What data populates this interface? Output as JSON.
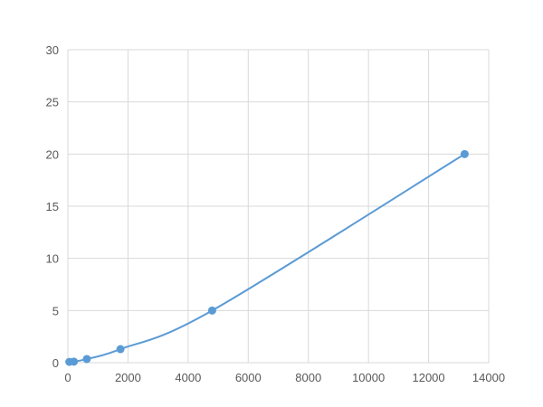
{
  "chart_data": {
    "type": "scatter",
    "title": "",
    "xlabel": "",
    "ylabel": "",
    "xlim": [
      0,
      14000
    ],
    "ylim": [
      0,
      30
    ],
    "xticks": [
      0,
      2000,
      4000,
      6000,
      8000,
      10000,
      12000,
      14000
    ],
    "yticks": [
      0,
      5,
      10,
      15,
      20,
      25,
      30
    ],
    "grid": true,
    "color": "#5b9bd5",
    "series": [
      {
        "x": [
          50,
          200,
          630,
          1750,
          4800,
          13200
        ],
        "y": [
          0.08,
          0.1,
          0.35,
          1.3,
          5,
          20
        ],
        "smooth_line": true
      }
    ]
  }
}
